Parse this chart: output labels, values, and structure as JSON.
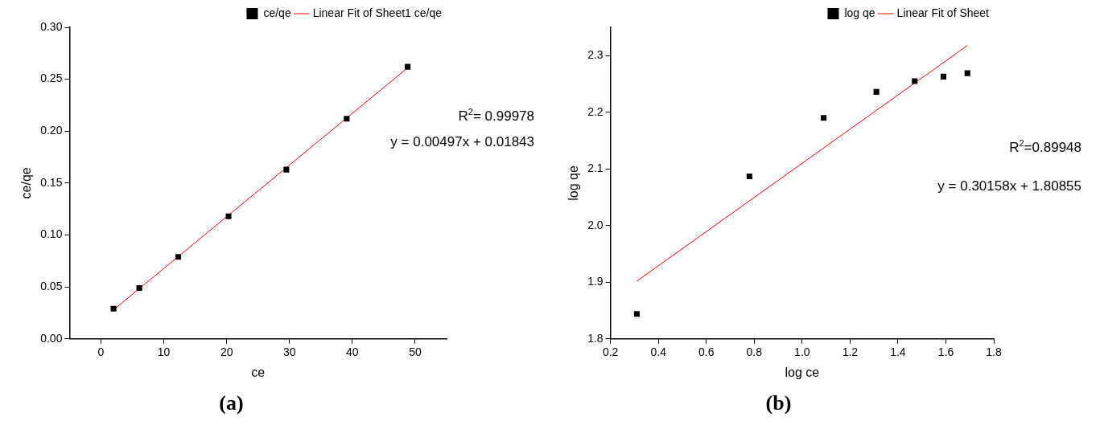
{
  "chart_data": [
    {
      "type": "scatter",
      "title": "(a)",
      "xlabel": "ce",
      "ylabel": "ce/qe",
      "xlim": [
        -5,
        55
      ],
      "xticks": [
        0,
        10,
        20,
        30,
        40,
        50
      ],
      "ylim": [
        0,
        0.3
      ],
      "yticks": [
        {
          "value": 0,
          "label": "0.00"
        },
        {
          "value": 0.05,
          "label": "0.05"
        },
        {
          "value": 0.1,
          "label": "0.10"
        },
        {
          "value": 0.15,
          "label": "0.15"
        },
        {
          "value": 0.2,
          "label": "0.20"
        },
        {
          "value": 0.25,
          "label": "0.25"
        },
        {
          "value": 0.3,
          "label": "0.30"
        }
      ],
      "grid": false,
      "legend": "top right",
      "annotations": [
        "R$^{2}$= 0.99978",
        "y = 0.00497x + 0.01843"
      ],
      "series": [
        {
          "name": "ce/qe",
          "color": "#000000",
          "marker": "square",
          "x": [
            2.0,
            6.1,
            12.3,
            20.3,
            29.5,
            39.1,
            48.8
          ],
          "values": [
            0.029,
            0.049,
            0.079,
            0.118,
            0.163,
            0.212,
            0.262
          ]
        },
        {
          "name": "Linear Fit of Sheet1 ce/qe",
          "type": "line",
          "color": "#ff0000",
          "marker": "none",
          "x": [
            2.0,
            48.8
          ],
          "values": [
            0.028,
            0.261
          ]
        }
      ]
    },
    {
      "type": "scatter",
      "title": "(b)",
      "xlabel": "log ce",
      "ylabel": "log qe",
      "xlim": [
        0.2,
        1.8
      ],
      "xticks": [
        {
          "value": 0.2,
          "label": "0.2"
        },
        {
          "value": 0.4,
          "label": "0.4"
        },
        {
          "value": 0.6,
          "label": "0.6"
        },
        {
          "value": 0.8,
          "label": "0.8"
        },
        {
          "value": 1.0,
          "label": "1.0"
        },
        {
          "value": 1.2,
          "label": "1.2"
        },
        {
          "value": 1.4,
          "label": "1.4"
        },
        {
          "value": 1.6,
          "label": "1.6"
        },
        {
          "value": 1.8,
          "label": "1.8"
        }
      ],
      "ylim": [
        1.8,
        2.35
      ],
      "yticks": [
        {
          "value": 1.8,
          "label": "1.8"
        },
        {
          "value": 1.9,
          "label": "1.9"
        },
        {
          "value": 2.0,
          "label": "2.0"
        },
        {
          "value": 2.1,
          "label": "2.1"
        },
        {
          "value": 2.2,
          "label": "2.2"
        },
        {
          "value": 2.3,
          "label": "2.3"
        }
      ],
      "grid": false,
      "legend": "top right",
      "annotations": [
        "R$^{2}$=0.89948",
        "y = 0.30158x + 1.80855"
      ],
      "series": [
        {
          "name": "log qe",
          "color": "#000000",
          "marker": "square",
          "x": [
            0.31,
            0.78,
            1.09,
            1.31,
            1.47,
            1.59,
            1.69
          ],
          "values": [
            1.844,
            2.087,
            2.19,
            2.236,
            2.255,
            2.263,
            2.269
          ]
        },
        {
          "name": "Linear Fit of Sheet",
          "type": "line",
          "color": "#ff0000",
          "marker": "none",
          "x": [
            0.31,
            1.69
          ],
          "values": [
            1.902,
            2.318
          ]
        }
      ]
    }
  ]
}
